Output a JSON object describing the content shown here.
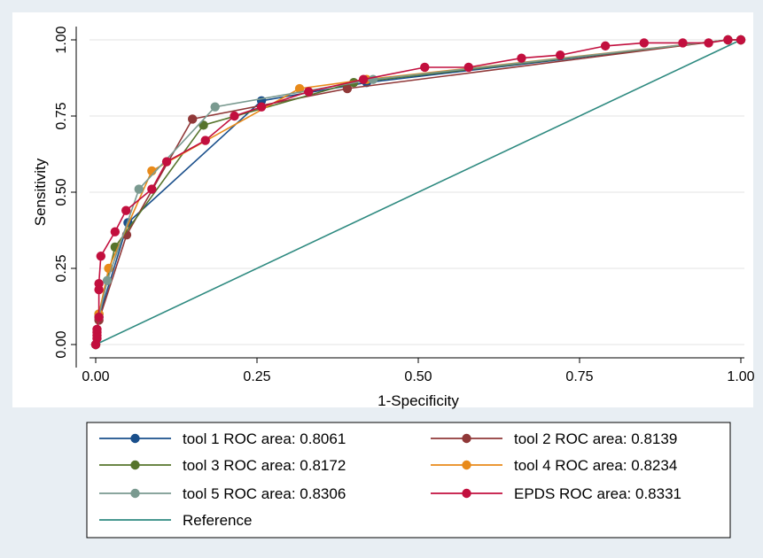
{
  "chart_data": {
    "type": "line",
    "xlabel": "1-Specificity",
    "ylabel": "Sensitivity",
    "xlim": [
      0,
      1
    ],
    "ylim": [
      0,
      1
    ],
    "x_ticks": [
      "0.00",
      "0.25",
      "0.50",
      "0.75",
      "1.00"
    ],
    "y_ticks": [
      "0.00",
      "0.25",
      "0.50",
      "0.75",
      "1.00"
    ],
    "grid": "horizontal",
    "legend_position": "bottom",
    "series": [
      {
        "name": "tool 1 ROC area: 0.8061",
        "color": "#1a4f8b",
        "points": [
          [
            0,
            0
          ],
          [
            0.005,
            0.09
          ],
          [
            0.05,
            0.4
          ],
          [
            0.257,
            0.8
          ],
          [
            0.42,
            0.86
          ],
          [
            0.98,
            1.0
          ],
          [
            1,
            1
          ]
        ]
      },
      {
        "name": "tool 2 ROC area: 0.8139",
        "color": "#903838",
        "points": [
          [
            0,
            0
          ],
          [
            0.005,
            0.08
          ],
          [
            0.048,
            0.36
          ],
          [
            0.15,
            0.74
          ],
          [
            0.39,
            0.84
          ],
          [
            0.98,
            1.0
          ],
          [
            1,
            1
          ]
        ]
      },
      {
        "name": "tool 3 ROC area: 0.8172",
        "color": "#56742c",
        "points": [
          [
            0,
            0
          ],
          [
            0.005,
            0.1
          ],
          [
            0.03,
            0.32
          ],
          [
            0.167,
            0.72
          ],
          [
            0.4,
            0.86
          ],
          [
            0.98,
            1.0
          ],
          [
            1,
            1
          ]
        ]
      },
      {
        "name": "tool 4 ROC area: 0.8234",
        "color": "#e88a1a",
        "points": [
          [
            0,
            0
          ],
          [
            0.005,
            0.1
          ],
          [
            0.02,
            0.25
          ],
          [
            0.087,
            0.57
          ],
          [
            0.316,
            0.84
          ],
          [
            0.42,
            0.87
          ],
          [
            0.98,
            1.0
          ],
          [
            1,
            1
          ]
        ]
      },
      {
        "name": "tool 5 ROC area: 0.8306",
        "color": "#7a9a90",
        "points": [
          [
            0,
            0
          ],
          [
            0.005,
            0.09
          ],
          [
            0.018,
            0.21
          ],
          [
            0.067,
            0.51
          ],
          [
            0.185,
            0.78
          ],
          [
            0.43,
            0.87
          ],
          [
            0.98,
            1.0
          ],
          [
            1,
            1
          ]
        ]
      },
      {
        "name": "EPDS ROC area: 0.8331",
        "color": "#c20f3e",
        "points": [
          [
            0,
            0
          ],
          [
            0.002,
            0.02
          ],
          [
            0.002,
            0.03
          ],
          [
            0.002,
            0.04
          ],
          [
            0.002,
            0.05
          ],
          [
            0.005,
            0.09
          ],
          [
            0.005,
            0.18
          ],
          [
            0.005,
            0.2
          ],
          [
            0.008,
            0.29
          ],
          [
            0.03,
            0.37
          ],
          [
            0.047,
            0.44
          ],
          [
            0.087,
            0.51
          ],
          [
            0.11,
            0.6
          ],
          [
            0.17,
            0.67
          ],
          [
            0.215,
            0.75
          ],
          [
            0.257,
            0.78
          ],
          [
            0.33,
            0.83
          ],
          [
            0.415,
            0.87
          ],
          [
            0.51,
            0.91
          ],
          [
            0.578,
            0.91
          ],
          [
            0.66,
            0.94
          ],
          [
            0.72,
            0.95
          ],
          [
            0.79,
            0.98
          ],
          [
            0.85,
            0.99
          ],
          [
            0.91,
            0.99
          ],
          [
            0.95,
            0.99
          ],
          [
            0.98,
            1.0
          ],
          [
            1,
            1
          ]
        ]
      },
      {
        "name": "Reference",
        "color": "#2e8a80",
        "points": [
          [
            0,
            0
          ],
          [
            1,
            1
          ]
        ]
      }
    ]
  }
}
